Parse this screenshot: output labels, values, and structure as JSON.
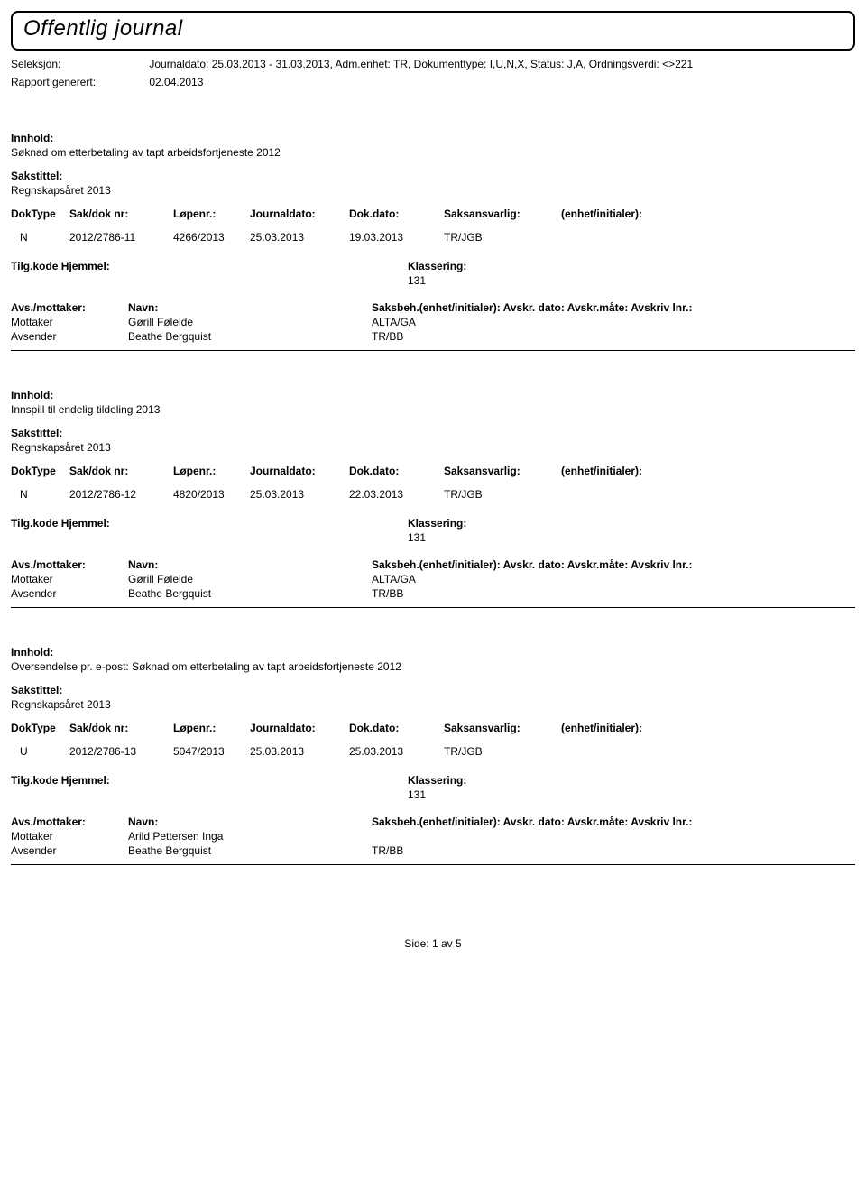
{
  "title": "Offentlig journal",
  "meta": {
    "seleksjon_label": "Seleksjon:",
    "seleksjon_value": "Journaldato: 25.03.2013 - 31.03.2013, Adm.enhet: TR, Dokumenttype: I,U,N,X, Status: J,A, Ordningsverdi: <>221",
    "rapport_label": "Rapport generert:",
    "rapport_value": "02.04.2013"
  },
  "labels": {
    "innhold": "Innhold:",
    "sakstittel": "Sakstittel:",
    "doktype": "DokType",
    "sakdok": "Sak/dok nr:",
    "lopenr": "Løpenr.:",
    "journaldato": "Journaldato:",
    "dokdato": "Dok.dato:",
    "saksansvarlig": "Saksansvarlig:",
    "enhet_init": "(enhet/initialer):",
    "tilgkode": "Tilg.kode",
    "hjemmel": "Hjemmel:",
    "klassering": "Klassering:",
    "avs_mottaker": "Avs./mottaker:",
    "navn": "Navn:",
    "saksbeh_line": "Saksbeh.(enhet/initialer): Avskr. dato: Avskr.måte: Avskriv lnr.:",
    "mottaker": "Mottaker",
    "avsender": "Avsender"
  },
  "entries": [
    {
      "innhold": "Søknad om etterbetaling av tapt arbeidsfortjeneste 2012",
      "sakstittel": "Regnskapsåret 2013",
      "doktype": "N",
      "sakdok": "2012/2786-11",
      "lopenr": "4266/2013",
      "journaldato": "25.03.2013",
      "dokdato": "19.03.2013",
      "saksansvarlig": "TR/JGB",
      "klassering_value": "131",
      "mottaker_navn": "Gørill Føleide",
      "mottaker_unit": "ALTA/GA",
      "avsender_navn": "Beathe Bergquist",
      "avsender_unit": "TR/BB"
    },
    {
      "innhold": "Innspill til endelig tildeling 2013",
      "sakstittel": "Regnskapsåret 2013",
      "doktype": "N",
      "sakdok": "2012/2786-12",
      "lopenr": "4820/2013",
      "journaldato": "25.03.2013",
      "dokdato": "22.03.2013",
      "saksansvarlig": "TR/JGB",
      "klassering_value": "131",
      "mottaker_navn": "Gørill Føleide",
      "mottaker_unit": "ALTA/GA",
      "avsender_navn": "Beathe Bergquist",
      "avsender_unit": "TR/BB"
    },
    {
      "innhold": "Oversendelse pr. e-post: Søknad om etterbetaling av tapt arbeidsfortjeneste 2012",
      "sakstittel": "Regnskapsåret 2013",
      "doktype": "U",
      "sakdok": "2012/2786-13",
      "lopenr": "5047/2013",
      "journaldato": "25.03.2013",
      "dokdato": "25.03.2013",
      "saksansvarlig": "TR/JGB",
      "klassering_value": "131",
      "mottaker_navn": "Arild Pettersen Inga",
      "mottaker_unit": "",
      "avsender_navn": "Beathe Bergquist",
      "avsender_unit": "TR/BB"
    }
  ],
  "footer": "Side: 1 av 5"
}
